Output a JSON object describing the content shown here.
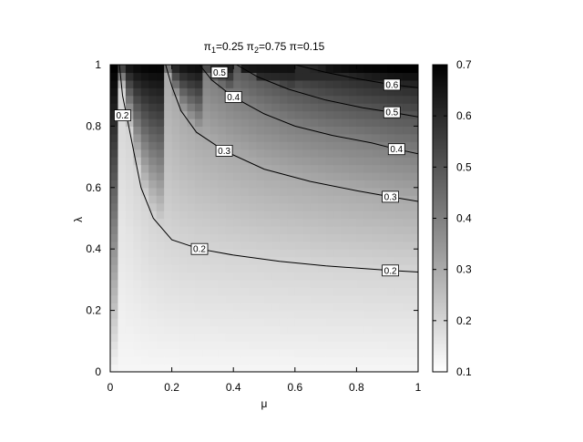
{
  "chart_data": {
    "type": "heatmap",
    "title": {
      "pi1_symbol": "π",
      "pi1_sub": "1",
      "pi1_value": "=0.25 ",
      "pi2_symbol": "π",
      "pi2_sub": "2",
      "pi2_value": "=0.75 ",
      "pi_symbol": "π",
      "pi_value": "=0.15"
    },
    "xlabel": "μ",
    "ylabel": "λ",
    "xlim": [
      0,
      1
    ],
    "ylim": [
      0,
      1
    ],
    "x_ticks": [
      "0",
      "0.2",
      "0.4",
      "0.6",
      "0.8",
      "1"
    ],
    "y_ticks": [
      "0",
      "0.2",
      "0.4",
      "0.6",
      "0.8",
      "1"
    ],
    "colorbar": {
      "min": 0.1,
      "max": 0.7,
      "ticks": [
        "0.1",
        "0.2",
        "0.3",
        "0.4",
        "0.5",
        "0.6",
        "0.7"
      ],
      "colormap": "white-to-black",
      "color_low": "#ffffff",
      "color_high": "#000000"
    },
    "grid": false,
    "contours": [
      {
        "level": "0.2",
        "labels": [
          {
            "text": "0.2",
            "x": 0.04,
            "y": 0.835
          },
          {
            "text": "0.2",
            "x": 0.29,
            "y": 0.4
          },
          {
            "text": "0.2",
            "x": 0.91,
            "y": 0.33
          }
        ],
        "points": [
          [
            0.03,
            1.0
          ],
          [
            0.04,
            0.9
          ],
          [
            0.06,
            0.8
          ],
          [
            0.08,
            0.7
          ],
          [
            0.1,
            0.6
          ],
          [
            0.14,
            0.5
          ],
          [
            0.2,
            0.43
          ],
          [
            0.29,
            0.4
          ],
          [
            0.4,
            0.38
          ],
          [
            0.55,
            0.36
          ],
          [
            0.7,
            0.345
          ],
          [
            0.91,
            0.33
          ],
          [
            1.0,
            0.325
          ]
        ]
      },
      {
        "level": "0.3",
        "labels": [
          {
            "text": "0.3",
            "x": 0.37,
            "y": 0.72
          },
          {
            "text": "0.3",
            "x": 0.91,
            "y": 0.57
          }
        ],
        "points": [
          [
            0.18,
            1.0
          ],
          [
            0.2,
            0.93
          ],
          [
            0.23,
            0.85
          ],
          [
            0.28,
            0.78
          ],
          [
            0.37,
            0.72
          ],
          [
            0.5,
            0.66
          ],
          [
            0.65,
            0.62
          ],
          [
            0.8,
            0.59
          ],
          [
            0.91,
            0.57
          ],
          [
            1.0,
            0.555
          ]
        ]
      },
      {
        "level": "0.4",
        "labels": [
          {
            "text": "0.4",
            "x": 0.4,
            "y": 0.895
          },
          {
            "text": "0.4",
            "x": 0.93,
            "y": 0.725
          }
        ],
        "points": [
          [
            0.29,
            1.0
          ],
          [
            0.33,
            0.95
          ],
          [
            0.4,
            0.895
          ],
          [
            0.5,
            0.84
          ],
          [
            0.6,
            0.8
          ],
          [
            0.72,
            0.77
          ],
          [
            0.85,
            0.745
          ],
          [
            0.93,
            0.725
          ],
          [
            1.0,
            0.71
          ]
        ]
      },
      {
        "level": "0.5",
        "labels": [
          {
            "text": "0.5",
            "x": 0.355,
            "y": 0.975
          },
          {
            "text": "0.5",
            "x": 0.915,
            "y": 0.845
          }
        ],
        "points": [
          [
            0.41,
            1.0
          ],
          [
            0.48,
            0.96
          ],
          [
            0.58,
            0.92
          ],
          [
            0.7,
            0.885
          ],
          [
            0.82,
            0.86
          ],
          [
            0.915,
            0.845
          ],
          [
            1.0,
            0.83
          ]
        ]
      },
      {
        "level": "0.6",
        "labels": [
          {
            "text": "0.6",
            "x": 0.915,
            "y": 0.935
          }
        ],
        "points": [
          [
            0.6,
            1.0
          ],
          [
            0.7,
            0.975
          ],
          [
            0.8,
            0.955
          ],
          [
            0.915,
            0.935
          ],
          [
            1.0,
            0.925
          ]
        ]
      }
    ],
    "background_contours": [
      {
        "level": "0.6",
        "points": [
          [
            0.3,
            1.0
          ],
          [
            0.34,
            0.988
          ],
          [
            0.38,
            0.978
          ]
        ]
      },
      {
        "level": "0.6",
        "points": [
          [
            0.43,
            0.972
          ],
          [
            0.5,
            0.96
          ],
          [
            0.6,
            0.955
          ],
          [
            0.7,
            0.95
          ],
          [
            0.8,
            0.945
          ],
          [
            0.88,
            0.94
          ]
        ]
      },
      {
        "level": "0.7",
        "points": [
          [
            0.7,
            1.0
          ],
          [
            0.8,
            0.995
          ],
          [
            0.9,
            0.99
          ],
          [
            1.0,
            0.985
          ]
        ]
      }
    ],
    "surface": {
      "grid_size": 40,
      "formula": "level contours of z(mu, lambda); see contours"
    }
  }
}
